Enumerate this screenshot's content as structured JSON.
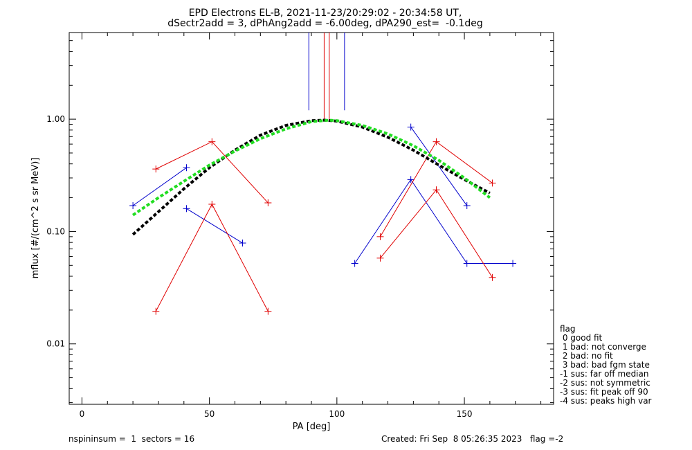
{
  "title": {
    "line1": "EPD Electrons EL-B, 2021-11-23/20:29:02 - 20:34:58 UT,",
    "line2": "dSectr2add = 3, dPhAng2add = -6.00deg, dPA290_est=  -0.1deg"
  },
  "flag_legend": {
    "heading": "flag",
    "items": [
      " 0 good fit",
      " 1 bad: not converge",
      " 2 bad: no fit",
      " 3 bad: bad fgm state",
      "-1 sus: far off median",
      "-2 sus: not symmetric",
      "-3 sus: fit peak off 90",
      "-4 sus: peaks high var"
    ]
  },
  "footer": {
    "left": "nspininsum =  1  sectors = 16",
    "right": "Created: Fri Sep  8 05:26:35 2023   flag =-2"
  },
  "colors": {
    "red": "#e00000",
    "blue": "#0000cc",
    "green": "#22dd22",
    "black": "#000000"
  },
  "chart_data": {
    "type": "line",
    "title": "EPD Electrons EL-B, 2021-11-23/20:29:02 - 20:34:58 UT, dSectr2add = 3, dPhAng2add = -6.00deg, dPA290_est=  -0.1deg",
    "xlabel": "PA [deg]",
    "ylabel": "mflux [#/(cm^2 s sr MeV)]",
    "xlim": [
      -5,
      185
    ],
    "ylim": [
      0.0029,
      5.9
    ],
    "yscale": "log",
    "x_ticks": [
      0,
      50,
      100,
      150
    ],
    "x_tick_labels": [
      "0",
      "50",
      "100",
      "150"
    ],
    "y_ticks": [
      0.01,
      0.1,
      1.0
    ],
    "y_tick_labels": [
      "0.01",
      "0.10",
      "1.00"
    ],
    "series": [
      {
        "color": "blue",
        "style": "line+plus",
        "x": [
          20,
          41
        ],
        "y": [
          0.17,
          0.37
        ]
      },
      {
        "color": "blue",
        "style": "line+plus",
        "x": [
          41,
          63
        ],
        "y": [
          0.16,
          0.079
        ]
      },
      {
        "color": "red",
        "style": "line+plus",
        "x": [
          29,
          51,
          73
        ],
        "y": [
          0.36,
          0.63,
          0.18
        ]
      },
      {
        "color": "red",
        "style": "line+plus",
        "x": [
          29,
          51,
          73
        ],
        "y": [
          0.0195,
          0.175,
          0.0195
        ]
      },
      {
        "color": "blue",
        "style": "line+plus",
        "x": [
          107,
          129,
          151,
          169
        ],
        "y": [
          0.052,
          0.29,
          0.052,
          0.052
        ]
      },
      {
        "color": "blue",
        "style": "line+plus",
        "x": [
          129,
          151
        ],
        "y": [
          0.85,
          0.17
        ]
      },
      {
        "color": "red",
        "style": "line+plus",
        "x": [
          117,
          139,
          161
        ],
        "y": [
          0.09,
          0.63,
          0.27
        ]
      },
      {
        "color": "red",
        "style": "line+plus",
        "x": [
          117,
          139,
          161
        ],
        "y": [
          0.058,
          0.235,
          0.039
        ]
      },
      {
        "color": "black",
        "style": "dashed-fit",
        "x": [
          20,
          30,
          40,
          50,
          60,
          70,
          80,
          90,
          95,
          100,
          110,
          120,
          130,
          140,
          150,
          160
        ],
        "y": [
          0.094,
          0.15,
          0.24,
          0.37,
          0.53,
          0.72,
          0.88,
          0.97,
          0.98,
          0.96,
          0.85,
          0.69,
          0.53,
          0.39,
          0.29,
          0.22
        ]
      },
      {
        "color": "green",
        "style": "dashed-fit",
        "x": [
          20,
          30,
          40,
          50,
          60,
          70,
          80,
          90,
          97,
          100,
          110,
          120,
          130,
          140,
          150,
          160
        ],
        "y": [
          0.14,
          0.2,
          0.28,
          0.39,
          0.52,
          0.67,
          0.82,
          0.95,
          0.98,
          0.97,
          0.88,
          0.74,
          0.58,
          0.43,
          0.3,
          0.2
        ]
      }
    ],
    "vertical_markers": [
      {
        "color": "blue",
        "x": 89,
        "y_from": 1.2
      },
      {
        "color": "red",
        "x": 95,
        "y_from": 1.0
      },
      {
        "color": "red",
        "x": 97,
        "y_from": 1.0
      },
      {
        "color": "blue",
        "x": 103,
        "y_from": 1.2
      }
    ]
  }
}
